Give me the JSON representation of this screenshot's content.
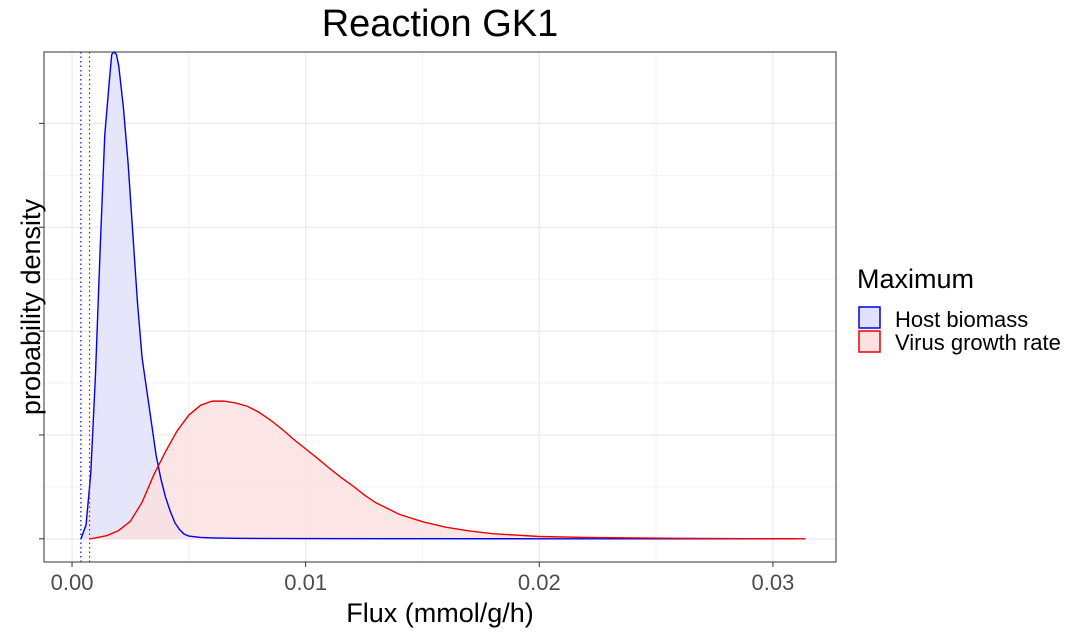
{
  "chart_data": {
    "type": "area",
    "title": "Reaction GK1",
    "xlabel": "Flux (mmol/g/h)",
    "ylabel": "probability density",
    "xlim": [
      -0.0012,
      0.0327
    ],
    "ylim": [
      -0.05,
      1.05
    ],
    "x_ticks": [
      0.0,
      0.01,
      0.02,
      0.03
    ],
    "x_tick_labels": [
      "0.00",
      "0.01",
      "0.02",
      "0.03"
    ],
    "y_ticks": [
      0,
      0.224,
      0.448,
      0.672,
      0.896
    ],
    "y_tick_labels_shown": false,
    "grid": true,
    "legend": {
      "title": "Maximum",
      "position": "right",
      "entries": [
        "Host biomass",
        "Virus growth rate"
      ]
    },
    "series": [
      {
        "name": "Host biomass",
        "color": "#0000ee",
        "fill": "#e1e1fb",
        "vline": 0.00038,
        "x": [
          0.00038,
          0.0006,
          0.0008,
          0.001,
          0.0012,
          0.0014,
          0.0016,
          0.0017,
          0.0018,
          0.0019,
          0.002,
          0.0022,
          0.0024,
          0.0026,
          0.0028,
          0.003,
          0.0032,
          0.0034,
          0.0036,
          0.0038,
          0.004,
          0.0042,
          0.0044,
          0.0046,
          0.0048,
          0.005,
          0.0055,
          0.006,
          0.007,
          0.01,
          0.015,
          0.02,
          0.031
        ],
        "y": [
          0.0,
          0.03,
          0.14,
          0.35,
          0.62,
          0.87,
          0.99,
          1.045,
          1.05,
          1.045,
          1.02,
          0.93,
          0.81,
          0.66,
          0.51,
          0.39,
          0.32,
          0.25,
          0.18,
          0.13,
          0.09,
          0.06,
          0.035,
          0.02,
          0.01,
          0.006,
          0.003,
          0.002,
          0.001,
          0.0005,
          0.0002,
          0.0001,
          0.0
        ]
      },
      {
        "name": "Virus growth rate",
        "color": "#ee0000",
        "fill": "#fce1e1",
        "vline": 0.00075,
        "x": [
          0.00075,
          0.001,
          0.0015,
          0.002,
          0.0025,
          0.003,
          0.0035,
          0.004,
          0.0045,
          0.005,
          0.0055,
          0.006,
          0.0065,
          0.007,
          0.0075,
          0.008,
          0.0085,
          0.009,
          0.0095,
          0.01,
          0.0105,
          0.011,
          0.0115,
          0.012,
          0.0125,
          0.013,
          0.014,
          0.015,
          0.016,
          0.017,
          0.018,
          0.019,
          0.02,
          0.022,
          0.024,
          0.026,
          0.028,
          0.03,
          0.0314
        ],
        "y": [
          0.0,
          0.002,
          0.007,
          0.018,
          0.038,
          0.079,
          0.138,
          0.188,
          0.233,
          0.267,
          0.288,
          0.297,
          0.297,
          0.293,
          0.286,
          0.273,
          0.256,
          0.236,
          0.214,
          0.194,
          0.174,
          0.153,
          0.133,
          0.115,
          0.095,
          0.078,
          0.053,
          0.037,
          0.025,
          0.017,
          0.011,
          0.008,
          0.005,
          0.003,
          0.002,
          0.001,
          0.0005,
          0.0002,
          0.0
        ]
      }
    ]
  }
}
